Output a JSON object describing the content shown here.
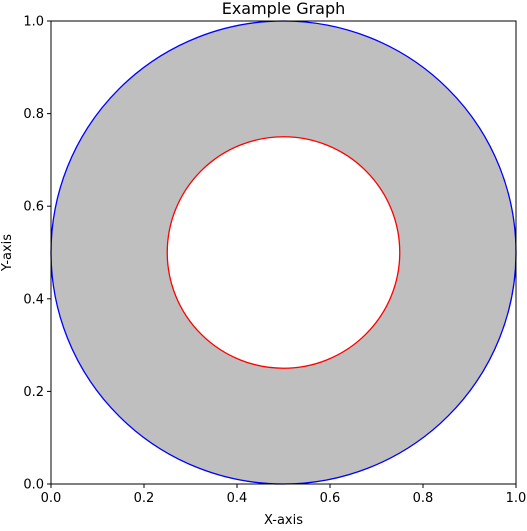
{
  "chart_data": {
    "type": "area",
    "title": "Example Graph",
    "xlabel": "X-axis",
    "ylabel": "Y-axis",
    "xlim": [
      0,
      1
    ],
    "ylim": [
      0,
      1
    ],
    "xticks": [
      "0.0",
      "0.2",
      "0.4",
      "0.6",
      "0.8",
      "1.0"
    ],
    "yticks": [
      "0.0",
      "0.2",
      "0.4",
      "0.6",
      "0.8",
      "1.0"
    ],
    "grid": false,
    "shapes": [
      {
        "shape": "circle",
        "center": [
          0.5,
          0.5
        ],
        "radius": 0.5,
        "edge_color": "#0000ff"
      },
      {
        "shape": "circle",
        "center": [
          0.5,
          0.5
        ],
        "radius": 0.25,
        "edge_color": "#ff0000"
      }
    ],
    "fill": {
      "between": "annulus",
      "color": "#bfbfbf"
    }
  }
}
